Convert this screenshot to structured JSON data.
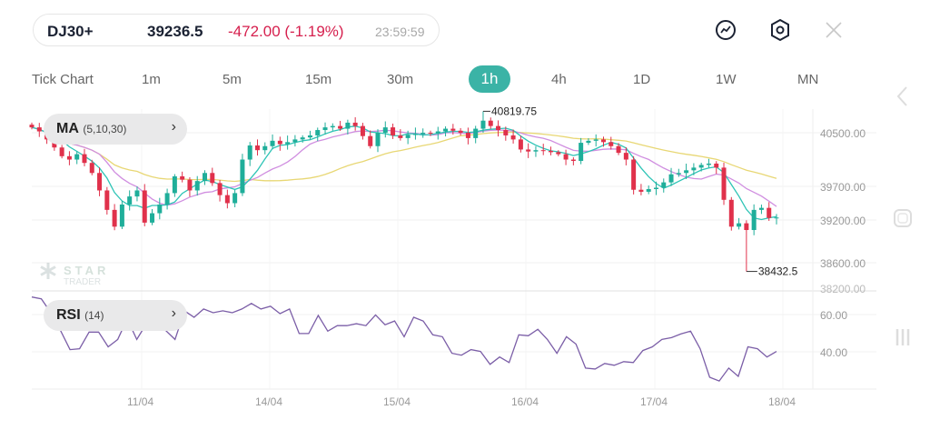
{
  "header": {
    "symbol": "DJ30+",
    "price": "39236.5",
    "change": "-472.00 (-1.19%)",
    "time": "23:59:59",
    "change_color": "#d6204e",
    "icons": [
      "chart-trend-icon",
      "settings-hexagon-icon",
      "close-icon"
    ]
  },
  "timeframes": {
    "items": [
      "Tick Chart",
      "1m",
      "5m",
      "15m",
      "30m",
      "1h",
      "4h",
      "1D",
      "1W",
      "MN"
    ],
    "active": "1h",
    "active_color": "#3bb3a6"
  },
  "indicators": {
    "ma": {
      "name": "MA",
      "params": "(5,10,30)"
    },
    "rsi": {
      "name": "RSI",
      "params": "(14)"
    }
  },
  "watermark": {
    "line1": "STAR",
    "line2": "TRADER"
  },
  "chart_data": {
    "type": "candlestick",
    "price_axis": {
      "ticks": [
        "40500.00",
        "39700.00",
        "39200.00",
        "38600.00",
        "38200.00"
      ]
    },
    "rsi_axis": {
      "ticks": [
        "60.00",
        "40.00"
      ]
    },
    "x_labels": [
      "11/04",
      "14/04",
      "15/04",
      "16/04",
      "17/04",
      "18/04"
    ],
    "high_marker": "40819.75",
    "low_marker": "38432.5",
    "colors": {
      "up": "#1fae9a",
      "down": "#e0314b",
      "ma5": "#2ec4b6",
      "ma10": "#d08ee0",
      "ma30": "#e8d774",
      "rsi": "#7b5ea7"
    },
    "closes": [
      40580,
      40520,
      40400,
      40280,
      40150,
      40100,
      40180,
      40050,
      39900,
      39640,
      39350,
      39100,
      39430,
      39550,
      39640,
      39160,
      39300,
      39430,
      39600,
      39850,
      39800,
      39640,
      39780,
      39900,
      39750,
      39570,
      39450,
      39600,
      40100,
      40310,
      40240,
      40300,
      40380,
      40330,
      40360,
      40400,
      40430,
      40460,
      40540,
      40580,
      40600,
      40560,
      40650,
      40600,
      40450,
      40300,
      40500,
      40580,
      40460,
      40420,
      40470,
      40480,
      40500,
      40490,
      40520,
      40560,
      40530,
      40500,
      40420,
      40560,
      40680,
      40600,
      40540,
      40460,
      40400,
      40250,
      40220,
      40240,
      40230,
      40210,
      40180,
      40100,
      40080,
      40350,
      40380,
      40400,
      40360,
      40300,
      40200,
      40100,
      39650,
      39620,
      39660,
      39680,
      39760,
      39880,
      39900,
      39940,
      39980,
      40020,
      40040,
      39980,
      39500,
      39100,
      39150,
      39050,
      39350,
      39380,
      39230,
      39236
    ],
    "rsi": [
      69.5,
      68.5,
      61,
      51.5,
      41,
      41.5,
      50.5,
      50.5,
      42.5,
      46.5,
      57.7,
      46.5,
      55,
      51.5,
      51.5,
      46.5,
      62,
      58.5,
      63,
      61,
      62,
      61,
      63,
      66,
      63,
      64.5,
      60.5,
      63,
      49.7,
      49.7,
      59.5,
      51,
      54,
      54,
      55,
      54,
      59.8,
      54.5,
      56.5,
      48,
      58.5,
      56.5,
      49,
      48,
      39,
      38,
      41,
      40,
      33,
      37,
      34,
      49,
      48.5,
      52,
      46.5,
      39,
      48,
      44,
      31,
      30.5,
      33.5,
      32.5,
      34.5,
      34,
      40.5,
      42.5,
      46.5,
      47.5,
      49.5,
      51,
      41.5,
      26,
      24,
      31,
      26.5,
      42.5,
      41.5,
      37,
      40
    ]
  }
}
